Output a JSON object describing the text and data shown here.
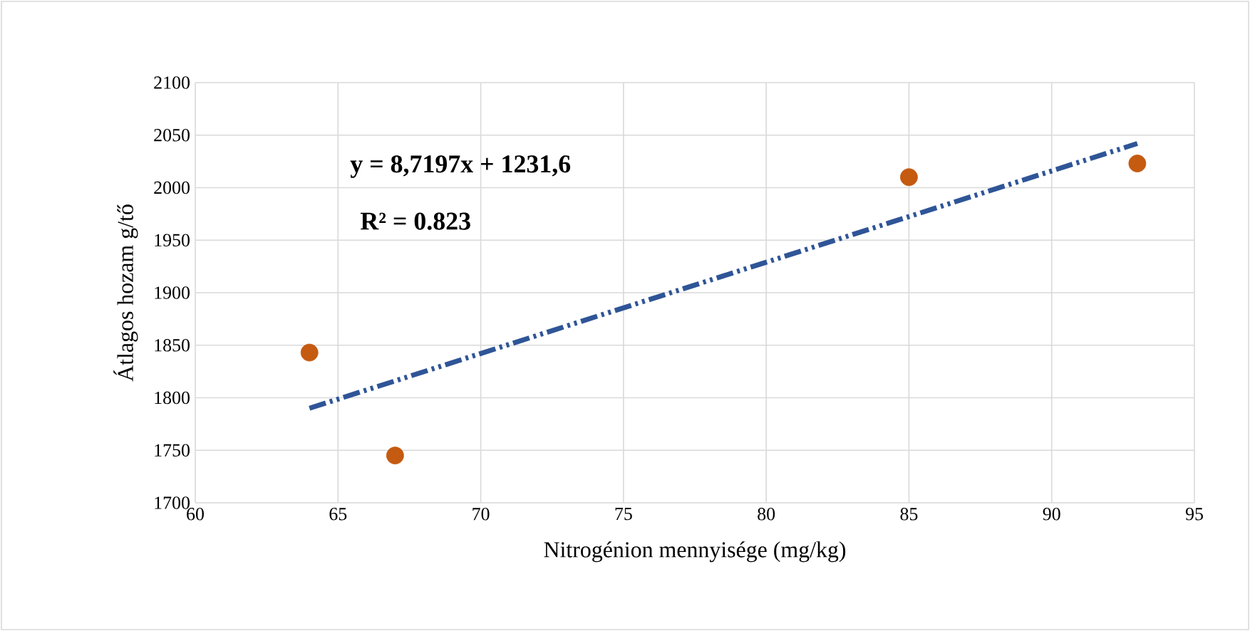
{
  "chart_data": {
    "type": "scatter",
    "xlabel": "Nitrogénion mennyisége (mg/kg)",
    "ylabel": "Átlagos hozam g/tő",
    "annotations": [
      "y = 8,7197x + 1231,6",
      "R² = 0.823"
    ],
    "series": [
      {
        "color": "#c55a11",
        "marker": "circle",
        "x": [
          64,
          67,
          85,
          93
        ],
        "values": [
          1843,
          1745,
          2010,
          2023
        ]
      },
      {
        "type": "line",
        "color": "#2f5597",
        "line_style": "dashed",
        "marker": "none",
        "x": [
          64,
          93
        ],
        "values": [
          1790,
          2042
        ]
      }
    ],
    "xlim": [
      60,
      95
    ],
    "ylim": [
      1700,
      2100
    ],
    "xticks": [
      60,
      65,
      70,
      75,
      80,
      85,
      90,
      95
    ],
    "yticks": [
      1700,
      1750,
      1800,
      1850,
      1900,
      1950,
      2000,
      2050,
      2100
    ],
    "grid": true
  }
}
